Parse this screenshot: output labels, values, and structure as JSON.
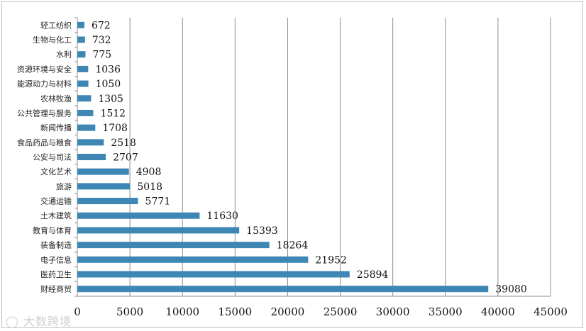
{
  "chart_data": {
    "type": "bar",
    "orientation": "horizontal",
    "title": "",
    "xlabel": "",
    "ylabel": "",
    "xlim": [
      0,
      45000
    ],
    "x_ticks": [
      0,
      5000,
      10000,
      15000,
      20000,
      25000,
      30000,
      35000,
      40000,
      45000
    ],
    "grid": "vertical",
    "bar_color": "#3e87b5",
    "categories": [
      "轻工纺织",
      "生物与化工",
      "水利",
      "资源环境与安全",
      "能源动力与材料",
      "农林牧渔",
      "公共管理与服务",
      "新闻传播",
      "食品药品与粮食",
      "公安与司法",
      "文化艺术",
      "旅游",
      "交通运输",
      "土木建筑",
      "教育与体育",
      "装备制造",
      "电子信息",
      "医药卫生",
      "财经商贸"
    ],
    "values": [
      672,
      732,
      775,
      1036,
      1050,
      1305,
      1512,
      1708,
      2518,
      2707,
      4908,
      5018,
      5771,
      11630,
      15393,
      18264,
      21952,
      25894,
      39080
    ]
  },
  "watermark": {
    "text": "大数跨境",
    "icon": "watermark-logo-icon"
  }
}
